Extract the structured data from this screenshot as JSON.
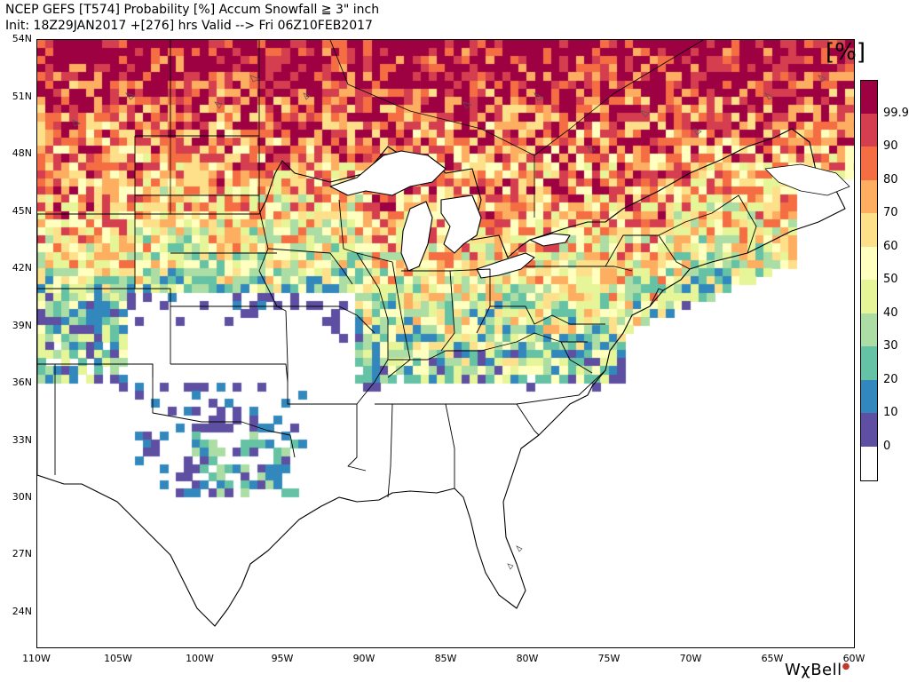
{
  "header": {
    "line1": "NCEP GEFS [T574] Probability [%] Accum Snowfall ≧ 3\" inch",
    "line2": "Init: 18Z29JAN2017   +[276] hrs Valid --> Fri 06Z10FEB2017"
  },
  "unit_label": "[%]",
  "latitude_labels": [
    "54N",
    "51N",
    "48N",
    "45N",
    "42N",
    "39N",
    "36N",
    "33N",
    "30N",
    "27N",
    "24N"
  ],
  "longitude_labels": [
    "110W",
    "105W",
    "100W",
    "95W",
    "90W",
    "85W",
    "80W",
    "75W",
    "70W",
    "65W",
    "60W"
  ],
  "colorbar": {
    "labels": [
      "99.9",
      "90",
      "80",
      "70",
      "60",
      "50",
      "40",
      "30",
      "20",
      "10",
      "0"
    ],
    "colors": [
      "#9e0142",
      "#d53e4f",
      "#f46d43",
      "#fdae61",
      "#fee08b",
      "#ffffbf",
      "#e6f598",
      "#abdda4",
      "#66c2a5",
      "#3288bd",
      "#5e4fa2",
      "#ffffff"
    ]
  },
  "logo": {
    "text": "WχBell",
    "mark": "logo-dot"
  },
  "map": {
    "extent": {
      "lon_min": -110,
      "lon_max": -60,
      "lat_min": 22,
      "lat_max": 54
    }
  }
}
